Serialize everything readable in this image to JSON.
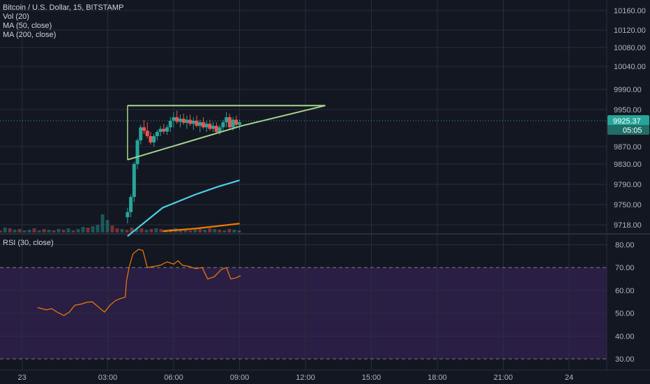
{
  "legend": {
    "symbol": "Bitcoin / U.S. Dollar, 15, BITSTAMP",
    "vol": "Vol (20)",
    "ma50": "MA (50, close)",
    "ma200": "MA (200, close)",
    "rsi": "RSI (30, close)"
  },
  "colors": {
    "background": "#131722",
    "grid": "#2a2e39",
    "up": "#26a69a",
    "down": "#ef5350",
    "ma50": "#4dd0e1",
    "ma200": "#f57c00",
    "triangle": "#a5d68a",
    "rsi_line": "#f57c00",
    "rsi_band": "#2a1e45",
    "price_tag": "#26a69a"
  },
  "chart_data": [
    {
      "type": "candlestick",
      "symbol": "Bitcoin / U.S. Dollar, 15, BITSTAMP",
      "current_price": "9925.37",
      "countdown": "05:05",
      "y_ticks": [
        "10160.00",
        "10120.00",
        "10080.00",
        "10040.00",
        "9990.00",
        "9950.00",
        "9870.00",
        "9830.00",
        "9790.00",
        "9750.00",
        "9718.00"
      ],
      "ylim": [
        9700,
        10180
      ],
      "x_ticks": [
        "23",
        "03:00",
        "06:00",
        "09:00",
        "12:00",
        "15:00",
        "18:00",
        "21:00",
        "24"
      ],
      "candles": [
        {
          "t": 3.9,
          "o": 9730,
          "h": 9745,
          "l": 9720,
          "c": 9738,
          "d": "up"
        },
        {
          "t": 4.05,
          "o": 9738,
          "h": 9770,
          "l": 9730,
          "c": 9765,
          "d": "up"
        },
        {
          "t": 4.2,
          "o": 9765,
          "h": 9835,
          "l": 9755,
          "c": 9830,
          "d": "up"
        },
        {
          "t": 4.35,
          "o": 9830,
          "h": 9890,
          "l": 9820,
          "c": 9885,
          "d": "up"
        },
        {
          "t": 4.5,
          "o": 9885,
          "h": 9920,
          "l": 9875,
          "c": 9915,
          "d": "up"
        },
        {
          "t": 4.65,
          "o": 9915,
          "h": 9930,
          "l": 9900,
          "c": 9908,
          "d": "down"
        },
        {
          "t": 4.8,
          "o": 9908,
          "h": 9925,
          "l": 9890,
          "c": 9895,
          "d": "down"
        },
        {
          "t": 4.95,
          "o": 9895,
          "h": 9905,
          "l": 9875,
          "c": 9880,
          "d": "down"
        },
        {
          "t": 5.1,
          "o": 9880,
          "h": 9900,
          "l": 9870,
          "c": 9895,
          "d": "up"
        },
        {
          "t": 5.25,
          "o": 9895,
          "h": 9910,
          "l": 9885,
          "c": 9905,
          "d": "up"
        },
        {
          "t": 5.4,
          "o": 9905,
          "h": 9918,
          "l": 9895,
          "c": 9912,
          "d": "up"
        },
        {
          "t": 5.55,
          "o": 9912,
          "h": 9922,
          "l": 9900,
          "c": 9906,
          "d": "down"
        },
        {
          "t": 5.7,
          "o": 9906,
          "h": 9920,
          "l": 9898,
          "c": 9915,
          "d": "up"
        },
        {
          "t": 5.85,
          "o": 9915,
          "h": 9935,
          "l": 9905,
          "c": 9928,
          "d": "up"
        },
        {
          "t": 6.0,
          "o": 9928,
          "h": 9945,
          "l": 9915,
          "c": 9935,
          "d": "up"
        },
        {
          "t": 6.15,
          "o": 9935,
          "h": 9948,
          "l": 9922,
          "c": 9926,
          "d": "down"
        },
        {
          "t": 6.3,
          "o": 9926,
          "h": 9940,
          "l": 9915,
          "c": 9932,
          "d": "up"
        },
        {
          "t": 6.45,
          "o": 9932,
          "h": 9942,
          "l": 9920,
          "c": 9924,
          "d": "down"
        },
        {
          "t": 6.6,
          "o": 9924,
          "h": 9938,
          "l": 9912,
          "c": 9930,
          "d": "up"
        },
        {
          "t": 6.75,
          "o": 9930,
          "h": 9940,
          "l": 9918,
          "c": 9922,
          "d": "down"
        },
        {
          "t": 6.9,
          "o": 9922,
          "h": 9935,
          "l": 9910,
          "c": 9928,
          "d": "up"
        },
        {
          "t": 7.05,
          "o": 9928,
          "h": 9938,
          "l": 9915,
          "c": 9918,
          "d": "down"
        },
        {
          "t": 7.2,
          "o": 9918,
          "h": 9930,
          "l": 9905,
          "c": 9925,
          "d": "up"
        },
        {
          "t": 7.35,
          "o": 9925,
          "h": 9935,
          "l": 9912,
          "c": 9915,
          "d": "down"
        },
        {
          "t": 7.5,
          "o": 9915,
          "h": 9928,
          "l": 9905,
          "c": 9922,
          "d": "up"
        },
        {
          "t": 7.65,
          "o": 9922,
          "h": 9930,
          "l": 9908,
          "c": 9912,
          "d": "down"
        },
        {
          "t": 7.8,
          "o": 9912,
          "h": 9926,
          "l": 9905,
          "c": 9918,
          "d": "up"
        },
        {
          "t": 7.95,
          "o": 9918,
          "h": 9925,
          "l": 9900,
          "c": 9905,
          "d": "down"
        },
        {
          "t": 8.1,
          "o": 9905,
          "h": 9920,
          "l": 9898,
          "c": 9915,
          "d": "up"
        },
        {
          "t": 8.25,
          "o": 9915,
          "h": 9930,
          "l": 9908,
          "c": 9925,
          "d": "up"
        },
        {
          "t": 8.4,
          "o": 9925,
          "h": 9945,
          "l": 9915,
          "c": 9935,
          "d": "up"
        },
        {
          "t": 8.55,
          "o": 9935,
          "h": 9942,
          "l": 9910,
          "c": 9915,
          "d": "down"
        },
        {
          "t": 8.7,
          "o": 9915,
          "h": 9935,
          "l": 9908,
          "c": 9930,
          "d": "up"
        },
        {
          "t": 8.85,
          "o": 9930,
          "h": 9938,
          "l": 9915,
          "c": 9920,
          "d": "down"
        },
        {
          "t": 9.0,
          "o": 9920,
          "h": 9930,
          "l": 9910,
          "c": 9925,
          "d": "up"
        }
      ],
      "ma50": [
        [
          3.9,
          9700
        ],
        [
          5.5,
          9745
        ],
        [
          7.0,
          9770
        ],
        [
          8.0,
          9785
        ],
        [
          9.0,
          9798
        ]
      ],
      "ma200": [
        [
          5.5,
          9708
        ],
        [
          7.0,
          9712
        ],
        [
          8.0,
          9716
        ],
        [
          9.0,
          9720
        ]
      ],
      "triangle": {
        "top": [
          [
            3.9,
            9958
          ],
          [
            12.9,
            9958
          ]
        ],
        "bottom": [
          [
            3.9,
            9840
          ],
          [
            9.1,
            9918
          ],
          [
            12.9,
            9958
          ]
        ]
      },
      "volume": [
        3,
        7,
        6,
        4,
        5,
        3,
        4,
        6,
        3,
        5,
        4,
        3,
        5,
        4,
        6,
        3,
        5,
        8,
        7,
        9,
        11,
        26,
        18,
        10,
        6,
        5,
        4,
        7,
        5,
        6,
        4,
        5,
        6,
        5,
        4,
        5,
        6,
        4,
        5,
        3,
        4,
        5,
        4,
        6,
        5,
        4,
        3,
        5,
        4,
        3
      ],
      "volume_dir": [
        "down",
        "up",
        "down",
        "up",
        "down",
        "up",
        "up",
        "down",
        "up",
        "down",
        "up",
        "down",
        "up",
        "down",
        "up",
        "down",
        "up",
        "up",
        "down",
        "up",
        "up",
        "up",
        "up",
        "down",
        "down",
        "up",
        "down",
        "down",
        "up",
        "down",
        "up",
        "down",
        "up",
        "down",
        "up",
        "down",
        "up",
        "down",
        "up",
        "down",
        "up",
        "down",
        "up",
        "down",
        "up",
        "down",
        "up",
        "down",
        "up",
        "up"
      ]
    },
    {
      "type": "line",
      "series": [
        {
          "name": "RSI (30, close)"
        }
      ],
      "y_ticks": [
        "80.00",
        "70.00",
        "60.00",
        "50.00",
        "40.00",
        "30.00"
      ],
      "ylim": [
        26,
        85
      ],
      "overbought": 70,
      "oversold": 30,
      "rsi": [
        [
          -0.2,
          52.5
        ],
        [
          0.2,
          51.5
        ],
        [
          0.45,
          52.0
        ],
        [
          0.7,
          50.5
        ],
        [
          1.0,
          49.0
        ],
        [
          1.25,
          50.5
        ],
        [
          1.5,
          53.5
        ],
        [
          1.8,
          54.0
        ],
        [
          2.05,
          54.8
        ],
        [
          2.3,
          55.0
        ],
        [
          2.6,
          52.5
        ],
        [
          2.85,
          50.5
        ],
        [
          3.1,
          53.5
        ],
        [
          3.35,
          55.5
        ],
        [
          3.6,
          56.5
        ],
        [
          3.8,
          57.0
        ],
        [
          3.85,
          64.0
        ],
        [
          3.98,
          70.5
        ],
        [
          4.15,
          76.0
        ],
        [
          4.4,
          78.0
        ],
        [
          4.6,
          77.5
        ],
        [
          4.8,
          70.0
        ],
        [
          5.1,
          70.5
        ],
        [
          5.4,
          71.0
        ],
        [
          5.7,
          72.5
        ],
        [
          6.0,
          71.5
        ],
        [
          6.2,
          73.0
        ],
        [
          6.4,
          71.0
        ],
        [
          6.7,
          70.5
        ],
        [
          7.0,
          69.5
        ],
        [
          7.3,
          70.0
        ],
        [
          7.55,
          65.0
        ],
        [
          7.85,
          66.0
        ],
        [
          8.15,
          69.0
        ],
        [
          8.4,
          70.0
        ],
        [
          8.6,
          65.0
        ],
        [
          8.85,
          65.5
        ],
        [
          9.05,
          66.5
        ]
      ]
    }
  ]
}
